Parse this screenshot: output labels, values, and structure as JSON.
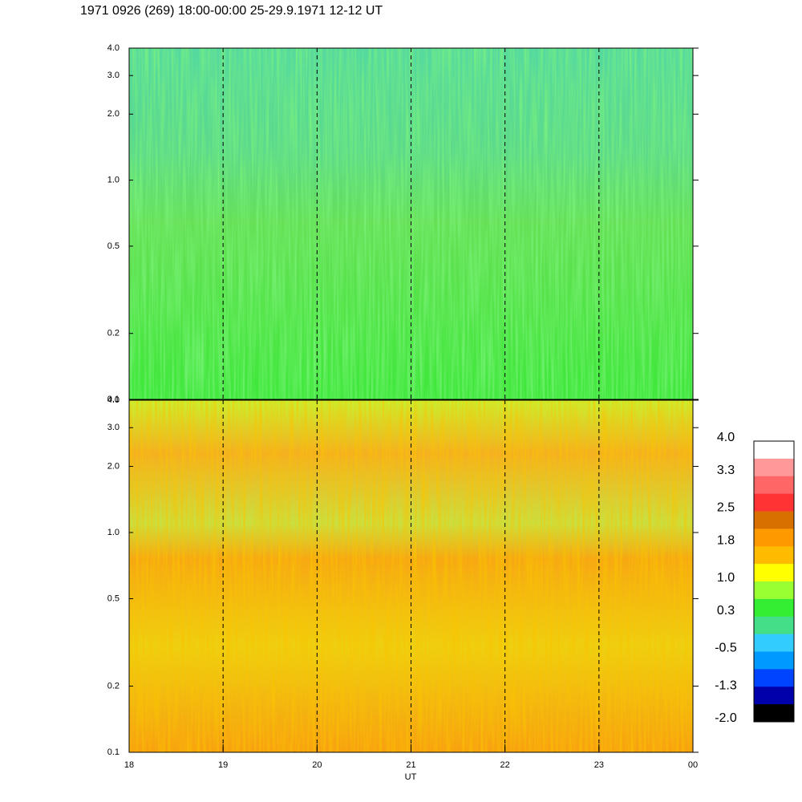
{
  "chart_data": {
    "type": "spectrogram",
    "title": "1971 0926 (269) 18:00-00:00 25-29.9.1971  12-12 UT",
    "xlabel": "UT",
    "xlim": [
      18,
      24
    ],
    "xticks": [
      18,
      19,
      20,
      21,
      22,
      23,
      {
        "value": 24,
        "label": "00"
      }
    ],
    "ylim": [
      0.1,
      4
    ],
    "yscale": "log",
    "yticks": [
      0.1,
      0.2,
      0.5,
      {
        "value": 1,
        "label": "1.0"
      },
      {
        "value": 2,
        "label": "2.0"
      },
      {
        "value": 3,
        "label": "3.0"
      },
      {
        "value": 4,
        "label": "4.0"
      }
    ],
    "grid": "dashed",
    "colorbar": {
      "lim": [
        -2,
        4
      ],
      "ticks": [
        {
          "value": 4,
          "label": "4.0"
        },
        3.3,
        2.5,
        1.8,
        {
          "value": 1,
          "label": "1.0"
        },
        0.3,
        -0.5,
        -1.3,
        {
          "value": -2,
          "label": "-2.0"
        }
      ],
      "colors": [
        "#ffffff",
        "#ff9999",
        "#ff6666",
        "#ff3333",
        "#d87000",
        "#ff9900",
        "#ffbb00",
        "#ffff00",
        "#99ff33",
        "#33ee33",
        "#44dd88",
        "#33ccff",
        "#0099ff",
        "#0044ff",
        "#0000aa",
        "#000000"
      ]
    }
  }
}
